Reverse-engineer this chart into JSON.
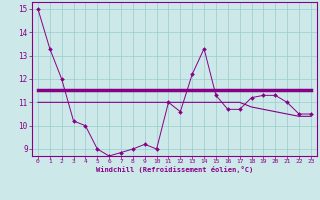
{
  "x": [
    0,
    1,
    2,
    3,
    4,
    5,
    6,
    7,
    8,
    9,
    10,
    11,
    12,
    13,
    14,
    15,
    16,
    17,
    18,
    19,
    20,
    21,
    22,
    23
  ],
  "line1": [
    15.0,
    13.3,
    12.0,
    10.2,
    10.0,
    9.0,
    8.7,
    8.85,
    9.0,
    9.2,
    9.0,
    11.0,
    10.6,
    12.2,
    13.3,
    11.3,
    10.7,
    10.7,
    11.2,
    11.3,
    11.3,
    11.0,
    10.5,
    10.5
  ],
  "line2": [
    11.55,
    11.55,
    11.55,
    11.55,
    11.55,
    11.55,
    11.55,
    11.55,
    11.55,
    11.55,
    11.55,
    11.55,
    11.55,
    11.55,
    11.55,
    11.55,
    11.55,
    11.55,
    11.55,
    11.55,
    11.55,
    11.55,
    11.55,
    11.55
  ],
  "line3": [
    11.0,
    11.0,
    11.0,
    11.0,
    11.0,
    11.0,
    11.0,
    11.0,
    11.0,
    11.0,
    11.0,
    11.0,
    11.0,
    11.0,
    11.0,
    11.0,
    11.0,
    11.0,
    10.8,
    10.7,
    10.6,
    10.5,
    10.4,
    10.4
  ],
  "bg_color": "#cce8e8",
  "line_color": "#880088",
  "grid_color": "#99cccc",
  "xlabel": "Windchill (Refroidissement éolien,°C)",
  "ylim": [
    8.7,
    15.3
  ],
  "xlim": [
    -0.5,
    23.5
  ],
  "yticks": [
    9,
    10,
    11,
    12,
    13,
    14,
    15
  ],
  "xticks": [
    0,
    1,
    2,
    3,
    4,
    5,
    6,
    7,
    8,
    9,
    10,
    11,
    12,
    13,
    14,
    15,
    16,
    17,
    18,
    19,
    20,
    21,
    22,
    23
  ]
}
